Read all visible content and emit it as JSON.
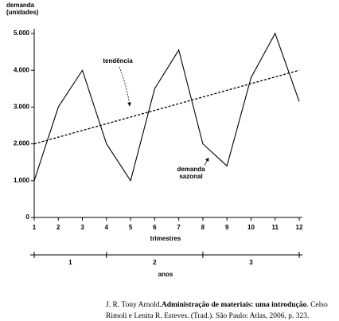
{
  "chart_data": {
    "type": "line",
    "ylabel": [
      "demanda",
      "(unidades)"
    ],
    "xlabel": "trimestres",
    "x": [
      1,
      2,
      3,
      4,
      5,
      6,
      7,
      8,
      9,
      10,
      11,
      12
    ],
    "xlim": [
      1,
      12
    ],
    "xticks": [
      1,
      2,
      3,
      4,
      5,
      6,
      7,
      8,
      9,
      10,
      11,
      12
    ],
    "ylim": [
      0,
      5000
    ],
    "yticks": [
      0,
      {
        "value": 1000,
        "label": "1.000"
      },
      {
        "value": 2000,
        "label": "2.000"
      },
      {
        "value": 3000,
        "label": "3.000"
      },
      {
        "value": 4000,
        "label": "4.000"
      },
      {
        "value": 5000,
        "label": "5.000"
      }
    ],
    "series": [
      {
        "name": "demanda sazonal",
        "color": "#000000",
        "dash": false,
        "values": [
          1000,
          3000,
          4000,
          2000,
          1000,
          3500,
          4550,
          2000,
          1400,
          3800,
          5000,
          3150
        ]
      },
      {
        "name": "tendência",
        "color": "#000000",
        "dash": true,
        "x": [
          1,
          12
        ],
        "values": [
          2000,
          4000
        ]
      }
    ],
    "year_axis": {
      "label": "anos",
      "categories": [
        "1",
        "2",
        "3"
      ],
      "ticks": [
        1,
        4,
        8,
        12
      ]
    }
  },
  "citation": {
    "author": "J. R. Tony Arnold.",
    "title": "Administração de materiais: uma introdução",
    "line1_rest": ". Celso",
    "line2": "Rimoli e Lenita R. Esteves. (Trad.). São Paulo: Atlas, 2006, p. 323."
  }
}
